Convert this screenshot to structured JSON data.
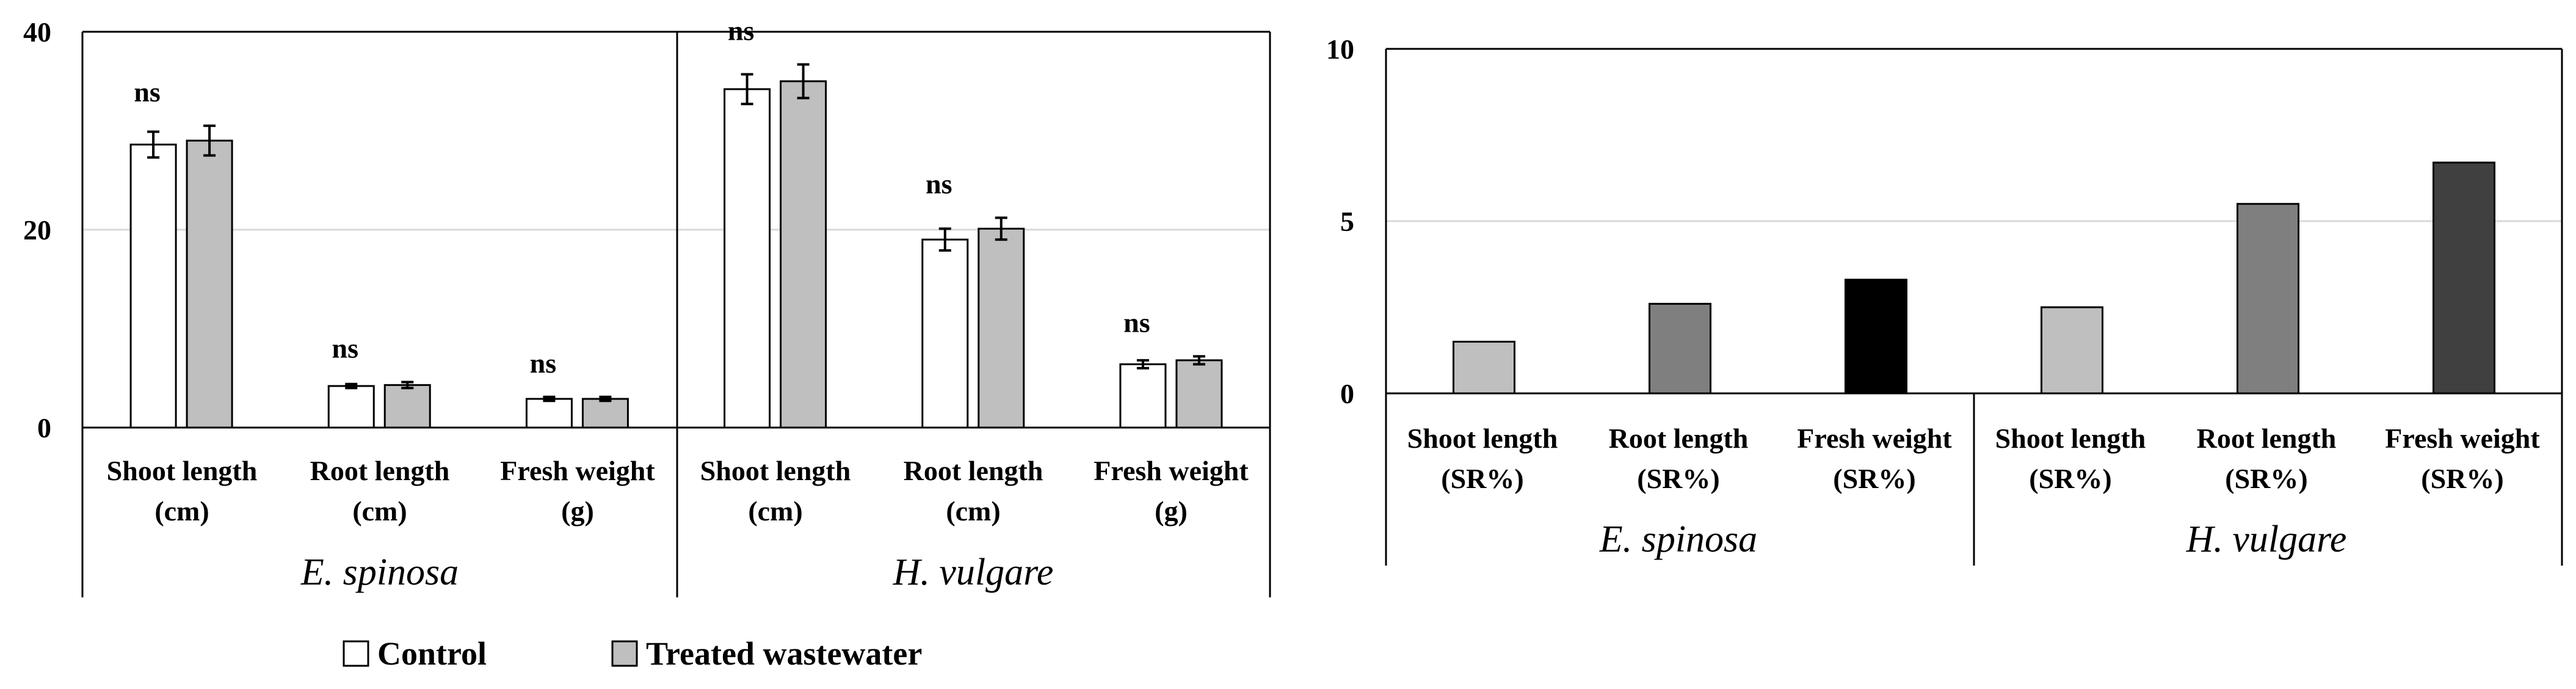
{
  "legend": {
    "control": "Control",
    "treated": "Treated wastewater"
  },
  "chart_data": [
    {
      "type": "bar",
      "title": "",
      "xlabel": "",
      "ylabel": "",
      "ylim": [
        0,
        40
      ],
      "yticks": [
        "0",
        "20",
        "40"
      ],
      "grid": true,
      "legend_position": "bottom",
      "groups": [
        "E. spinosa",
        "H. vulgare"
      ],
      "categories": [
        [
          "Shoot length",
          "(cm)"
        ],
        [
          "Root length",
          "(cm)"
        ],
        [
          "Fresh weight",
          "(g)"
        ],
        [
          "Shoot length",
          "(cm)"
        ],
        [
          "Root length",
          "(cm)"
        ],
        [
          "Fresh weight",
          "(g)"
        ]
      ],
      "series": [
        {
          "name": "Control",
          "color": "#ffffff",
          "values": [
            28.6,
            4.2,
            2.9,
            34.2,
            19.0,
            6.4
          ],
          "errors": [
            1.3,
            0.2,
            0.2,
            1.5,
            1.1,
            0.4
          ]
        },
        {
          "name": "Treated wastewater",
          "color": "#bfbfbf",
          "values": [
            29.0,
            4.3,
            2.9,
            35.0,
            20.1,
            6.8
          ],
          "errors": [
            1.5,
            0.3,
            0.2,
            1.7,
            1.1,
            0.4
          ]
        }
      ],
      "annotations": [
        "ns",
        "ns",
        "ns",
        "ns",
        "ns",
        "ns"
      ]
    },
    {
      "type": "bar",
      "title": "",
      "xlabel": "",
      "ylabel": "",
      "ylim": [
        0,
        10
      ],
      "yticks": [
        "0",
        "5",
        "10"
      ],
      "grid": true,
      "groups": [
        "E. spinosa",
        "H. vulgare"
      ],
      "categories": [
        [
          "Shoot length",
          "(SR%)"
        ],
        [
          "Root length",
          "(SR%)"
        ],
        [
          "Fresh weight",
          "(SR%)"
        ],
        [
          "Shoot length",
          "(SR%)"
        ],
        [
          "Root length",
          "(SR%)"
        ],
        [
          "Fresh weight",
          "(SR%)"
        ]
      ],
      "values": [
        1.5,
        2.6,
        3.3,
        2.5,
        5.5,
        6.7
      ],
      "colors": [
        "#bfbfbf",
        "#7f7f7f",
        "#000000",
        "#bfbfbf",
        "#7f7f7f",
        "#404040"
      ]
    }
  ]
}
